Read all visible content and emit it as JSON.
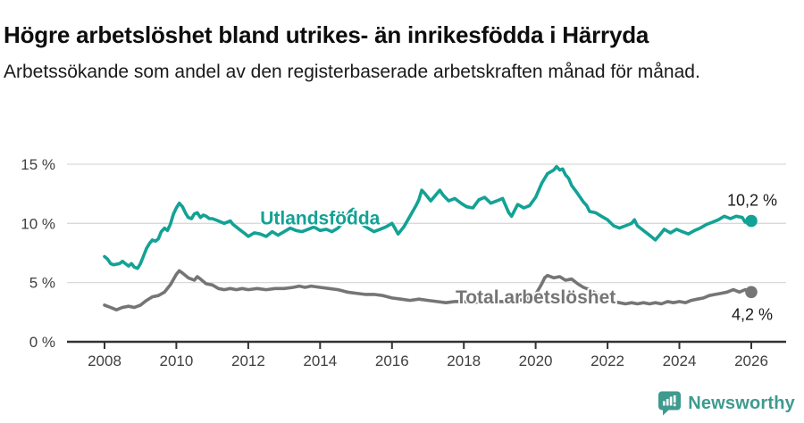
{
  "header": {
    "title": "Högre arbetslöshet bland utrikes- än inrikesfödda i Härryda",
    "subtitle": "Arbetssökande som andel av den registerbaserade arbetskraften månad för månad."
  },
  "colors": {
    "series_foreign": "#13a295",
    "series_total": "#757575",
    "gridline": "#d9d9d9",
    "axis": "#333333",
    "tick_label": "#404040",
    "annotation": "#1a1a1a",
    "brand": "#3f9a8e"
  },
  "chart_data": {
    "type": "line",
    "title": "",
    "xlabel": "",
    "ylabel": "",
    "x_axis": {
      "ticks": [
        2008,
        2010,
        2012,
        2014,
        2016,
        2018,
        2020,
        2022,
        2024,
        2026
      ],
      "range": [
        2007.5,
        2027
      ]
    },
    "y_axis": {
      "ticks": [
        0,
        5,
        10,
        15
      ],
      "tick_suffix": " %",
      "range": [
        0,
        15.5
      ],
      "grid": true
    },
    "series": [
      {
        "name": "Utlandsfödda",
        "color": "#13a295",
        "end_label": "10,2 %",
        "end_value": 10.2,
        "label_pos": {
          "year": 2014.0,
          "value": 10.45
        },
        "points": [
          [
            2008.0,
            7.2
          ],
          [
            2008.08,
            7.0
          ],
          [
            2008.17,
            6.6
          ],
          [
            2008.25,
            6.5
          ],
          [
            2008.42,
            6.6
          ],
          [
            2008.5,
            6.8
          ],
          [
            2008.58,
            6.6
          ],
          [
            2008.67,
            6.4
          ],
          [
            2008.75,
            6.6
          ],
          [
            2008.83,
            6.3
          ],
          [
            2008.92,
            6.2
          ],
          [
            2009.0,
            6.6
          ],
          [
            2009.08,
            7.2
          ],
          [
            2009.17,
            7.9
          ],
          [
            2009.25,
            8.3
          ],
          [
            2009.33,
            8.6
          ],
          [
            2009.42,
            8.5
          ],
          [
            2009.5,
            8.7
          ],
          [
            2009.58,
            9.3
          ],
          [
            2009.67,
            9.6
          ],
          [
            2009.75,
            9.4
          ],
          [
            2009.83,
            9.9
          ],
          [
            2009.92,
            10.8
          ],
          [
            2010.0,
            11.3
          ],
          [
            2010.08,
            11.7
          ],
          [
            2010.17,
            11.4
          ],
          [
            2010.25,
            10.9
          ],
          [
            2010.33,
            10.5
          ],
          [
            2010.42,
            10.4
          ],
          [
            2010.5,
            10.8
          ],
          [
            2010.58,
            10.9
          ],
          [
            2010.67,
            10.5
          ],
          [
            2010.75,
            10.7
          ],
          [
            2010.83,
            10.6
          ],
          [
            2010.92,
            10.4
          ],
          [
            2011.0,
            10.4
          ],
          [
            2011.17,
            10.2
          ],
          [
            2011.33,
            10.0
          ],
          [
            2011.5,
            10.2
          ],
          [
            2011.58,
            9.9
          ],
          [
            2011.75,
            9.5
          ],
          [
            2011.92,
            9.1
          ],
          [
            2012.0,
            8.9
          ],
          [
            2012.17,
            9.2
          ],
          [
            2012.33,
            9.1
          ],
          [
            2012.5,
            8.9
          ],
          [
            2012.67,
            9.3
          ],
          [
            2012.83,
            9.0
          ],
          [
            2013.0,
            9.3
          ],
          [
            2013.17,
            9.6
          ],
          [
            2013.33,
            9.4
          ],
          [
            2013.5,
            9.3
          ],
          [
            2013.67,
            9.5
          ],
          [
            2013.83,
            9.7
          ],
          [
            2014.0,
            9.4
          ],
          [
            2014.17,
            9.5
          ],
          [
            2014.33,
            9.3
          ],
          [
            2014.5,
            9.6
          ],
          [
            2014.67,
            10.2
          ],
          [
            2014.83,
            11.0
          ],
          [
            2014.92,
            11.2
          ],
          [
            2015.0,
            10.6
          ],
          [
            2015.17,
            9.9
          ],
          [
            2015.33,
            9.6
          ],
          [
            2015.5,
            9.3
          ],
          [
            2015.67,
            9.5
          ],
          [
            2015.83,
            9.7
          ],
          [
            2016.0,
            10.0
          ],
          [
            2016.08,
            9.6
          ],
          [
            2016.17,
            9.1
          ],
          [
            2016.33,
            9.7
          ],
          [
            2016.5,
            10.6
          ],
          [
            2016.67,
            11.5
          ],
          [
            2016.75,
            12.0
          ],
          [
            2016.83,
            12.8
          ],
          [
            2016.92,
            12.5
          ],
          [
            2017.0,
            12.2
          ],
          [
            2017.08,
            11.9
          ],
          [
            2017.25,
            12.5
          ],
          [
            2017.33,
            12.8
          ],
          [
            2017.42,
            12.4
          ],
          [
            2017.58,
            11.9
          ],
          [
            2017.75,
            12.1
          ],
          [
            2017.92,
            11.7
          ],
          [
            2018.08,
            11.4
          ],
          [
            2018.25,
            11.3
          ],
          [
            2018.42,
            12.0
          ],
          [
            2018.58,
            12.2
          ],
          [
            2018.75,
            11.7
          ],
          [
            2018.92,
            11.9
          ],
          [
            2019.08,
            12.1
          ],
          [
            2019.25,
            10.9
          ],
          [
            2019.33,
            10.6
          ],
          [
            2019.5,
            11.6
          ],
          [
            2019.67,
            11.3
          ],
          [
            2019.83,
            11.5
          ],
          [
            2020.0,
            12.2
          ],
          [
            2020.17,
            13.4
          ],
          [
            2020.33,
            14.2
          ],
          [
            2020.5,
            14.5
          ],
          [
            2020.58,
            14.8
          ],
          [
            2020.67,
            14.5
          ],
          [
            2020.75,
            14.6
          ],
          [
            2020.83,
            14.1
          ],
          [
            2020.92,
            13.8
          ],
          [
            2021.0,
            13.2
          ],
          [
            2021.17,
            12.5
          ],
          [
            2021.33,
            11.8
          ],
          [
            2021.42,
            11.5
          ],
          [
            2021.5,
            11.0
          ],
          [
            2021.67,
            10.9
          ],
          [
            2021.83,
            10.6
          ],
          [
            2022.0,
            10.3
          ],
          [
            2022.17,
            9.8
          ],
          [
            2022.33,
            9.6
          ],
          [
            2022.5,
            9.8
          ],
          [
            2022.67,
            10.0
          ],
          [
            2022.75,
            10.3
          ],
          [
            2022.83,
            9.8
          ],
          [
            2023.0,
            9.4
          ],
          [
            2023.17,
            9.0
          ],
          [
            2023.33,
            8.6
          ],
          [
            2023.5,
            9.2
          ],
          [
            2023.58,
            9.5
          ],
          [
            2023.75,
            9.2
          ],
          [
            2023.92,
            9.5
          ],
          [
            2024.08,
            9.3
          ],
          [
            2024.25,
            9.1
          ],
          [
            2024.42,
            9.4
          ],
          [
            2024.58,
            9.6
          ],
          [
            2024.75,
            9.9
          ],
          [
            2024.92,
            10.1
          ],
          [
            2025.08,
            10.3
          ],
          [
            2025.25,
            10.6
          ],
          [
            2025.42,
            10.4
          ],
          [
            2025.58,
            10.6
          ],
          [
            2025.75,
            10.5
          ],
          [
            2025.83,
            10.1
          ],
          [
            2026.0,
            10.2
          ]
        ]
      },
      {
        "name": "Total arbetslöshet",
        "color": "#757575",
        "end_label": "4,2 %",
        "end_value": 4.2,
        "label_pos": {
          "year": 2020.0,
          "value": 3.75
        },
        "points": [
          [
            2008.0,
            3.1
          ],
          [
            2008.17,
            2.9
          ],
          [
            2008.33,
            2.7
          ],
          [
            2008.5,
            2.9
          ],
          [
            2008.67,
            3.0
          ],
          [
            2008.83,
            2.9
          ],
          [
            2009.0,
            3.1
          ],
          [
            2009.17,
            3.5
          ],
          [
            2009.33,
            3.8
          ],
          [
            2009.5,
            3.9
          ],
          [
            2009.67,
            4.2
          ],
          [
            2009.83,
            4.8
          ],
          [
            2010.0,
            5.7
          ],
          [
            2010.08,
            6.0
          ],
          [
            2010.17,
            5.8
          ],
          [
            2010.33,
            5.4
          ],
          [
            2010.5,
            5.2
          ],
          [
            2010.58,
            5.5
          ],
          [
            2010.67,
            5.3
          ],
          [
            2010.83,
            4.9
          ],
          [
            2011.0,
            4.8
          ],
          [
            2011.17,
            4.5
          ],
          [
            2011.33,
            4.4
          ],
          [
            2011.5,
            4.5
          ],
          [
            2011.67,
            4.4
          ],
          [
            2011.83,
            4.5
          ],
          [
            2012.0,
            4.4
          ],
          [
            2012.25,
            4.5
          ],
          [
            2012.5,
            4.4
          ],
          [
            2012.75,
            4.5
          ],
          [
            2013.0,
            4.5
          ],
          [
            2013.25,
            4.6
          ],
          [
            2013.42,
            4.7
          ],
          [
            2013.58,
            4.6
          ],
          [
            2013.75,
            4.7
          ],
          [
            2014.0,
            4.6
          ],
          [
            2014.25,
            4.5
          ],
          [
            2014.5,
            4.4
          ],
          [
            2014.75,
            4.2
          ],
          [
            2015.0,
            4.1
          ],
          [
            2015.25,
            4.0
          ],
          [
            2015.5,
            4.0
          ],
          [
            2015.75,
            3.9
          ],
          [
            2016.0,
            3.7
          ],
          [
            2016.25,
            3.6
          ],
          [
            2016.5,
            3.5
          ],
          [
            2016.75,
            3.6
          ],
          [
            2017.0,
            3.5
          ],
          [
            2017.25,
            3.4
          ],
          [
            2017.5,
            3.3
          ],
          [
            2017.75,
            3.4
          ],
          [
            2018.0,
            3.4
          ],
          [
            2018.25,
            3.3
          ],
          [
            2018.5,
            3.4
          ],
          [
            2018.75,
            3.3
          ],
          [
            2019.0,
            3.4
          ],
          [
            2019.25,
            3.4
          ],
          [
            2019.5,
            3.5
          ],
          [
            2019.75,
            3.6
          ],
          [
            2020.0,
            4.0
          ],
          [
            2020.17,
            4.9
          ],
          [
            2020.25,
            5.4
          ],
          [
            2020.33,
            5.6
          ],
          [
            2020.5,
            5.4
          ],
          [
            2020.67,
            5.5
          ],
          [
            2020.83,
            5.2
          ],
          [
            2021.0,
            5.3
          ],
          [
            2021.17,
            4.9
          ],
          [
            2021.33,
            4.6
          ],
          [
            2021.5,
            4.4
          ],
          [
            2021.67,
            4.1
          ],
          [
            2021.83,
            3.8
          ],
          [
            2022.0,
            3.5
          ],
          [
            2022.17,
            3.4
          ],
          [
            2022.33,
            3.3
          ],
          [
            2022.5,
            3.2
          ],
          [
            2022.67,
            3.3
          ],
          [
            2022.83,
            3.2
          ],
          [
            2023.0,
            3.3
          ],
          [
            2023.17,
            3.2
          ],
          [
            2023.33,
            3.3
          ],
          [
            2023.5,
            3.2
          ],
          [
            2023.67,
            3.4
          ],
          [
            2023.83,
            3.3
          ],
          [
            2024.0,
            3.4
          ],
          [
            2024.17,
            3.3
          ],
          [
            2024.33,
            3.5
          ],
          [
            2024.5,
            3.6
          ],
          [
            2024.67,
            3.7
          ],
          [
            2024.83,
            3.9
          ],
          [
            2025.0,
            4.0
          ],
          [
            2025.17,
            4.1
          ],
          [
            2025.33,
            4.2
          ],
          [
            2025.5,
            4.4
          ],
          [
            2025.67,
            4.2
          ],
          [
            2025.83,
            4.4
          ],
          [
            2026.0,
            4.2
          ]
        ]
      }
    ]
  },
  "footer": {
    "brand": "Newsworthy",
    "brand_icon": "newsworthy-chart-bubble-icon"
  }
}
